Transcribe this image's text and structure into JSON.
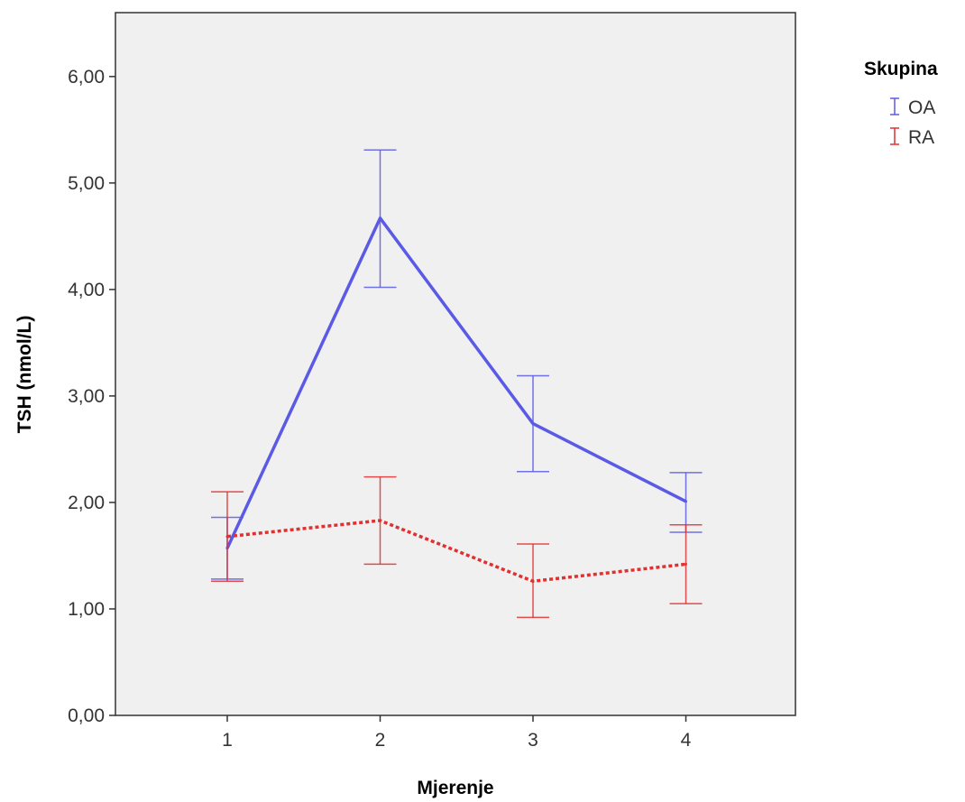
{
  "chart_data": {
    "type": "line",
    "xlabel": "Mjerenje",
    "ylabel": "TSH (nmol/L)",
    "categories": [
      "1",
      "2",
      "3",
      "4"
    ],
    "ylim": [
      0,
      6.6
    ],
    "yticks": [
      0,
      1,
      2,
      3,
      4,
      5,
      6
    ],
    "ytick_labels": [
      "0,00",
      "1,00",
      "2,00",
      "3,00",
      "4,00",
      "5,00",
      "6,00"
    ],
    "grid": false,
    "plot_background": "#f0f0f0",
    "legend": {
      "title": "Skupina",
      "position": "right"
    },
    "series": [
      {
        "name": "OA",
        "color": "#5a5ae6",
        "line_style": "solid",
        "values": [
          1.57,
          4.67,
          2.74,
          2.01
        ],
        "error_low": [
          1.28,
          4.02,
          2.29,
          1.72
        ],
        "error_high": [
          1.86,
          5.31,
          3.19,
          2.28
        ]
      },
      {
        "name": "RA",
        "color": "#e03030",
        "line_style": "dotted",
        "values": [
          1.68,
          1.83,
          1.26,
          1.42
        ],
        "error_low": [
          1.26,
          1.42,
          0.92,
          1.05
        ],
        "error_high": [
          2.1,
          2.24,
          1.61,
          1.79
        ]
      }
    ]
  }
}
